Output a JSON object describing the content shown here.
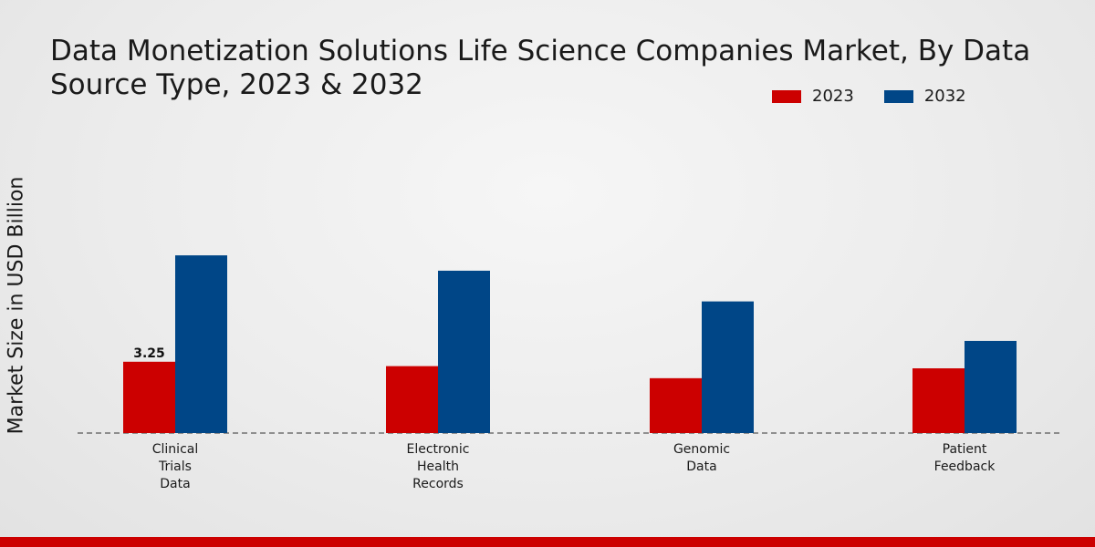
{
  "chart_data": {
    "type": "bar",
    "title": "Data Monetization Solutions Life Science Companies Market, By Data Source Type, 2023 & 2032",
    "ylabel": "Market Size in USD Billion",
    "xlabel": "",
    "categories": [
      "Clinical\nTrials\nData",
      "Electronic\nHealth\nRecords",
      "Genomic\nData",
      "Patient\nFeedback"
    ],
    "series": [
      {
        "name": "2023",
        "color": "#cc0000",
        "values": [
          3.25,
          3.05,
          2.5,
          2.95
        ]
      },
      {
        "name": "2032",
        "color": "#004687",
        "values": [
          8.1,
          7.4,
          6.0,
          4.2
        ]
      }
    ],
    "data_labels": [
      {
        "series": 0,
        "index": 0,
        "text": "3.25"
      }
    ],
    "ylim": [
      0,
      16
    ],
    "grid": false,
    "legend": "top-right"
  },
  "colors": {
    "bar_2023": "#cc0000",
    "bar_2032": "#004687",
    "footer": "#cc0000"
  }
}
